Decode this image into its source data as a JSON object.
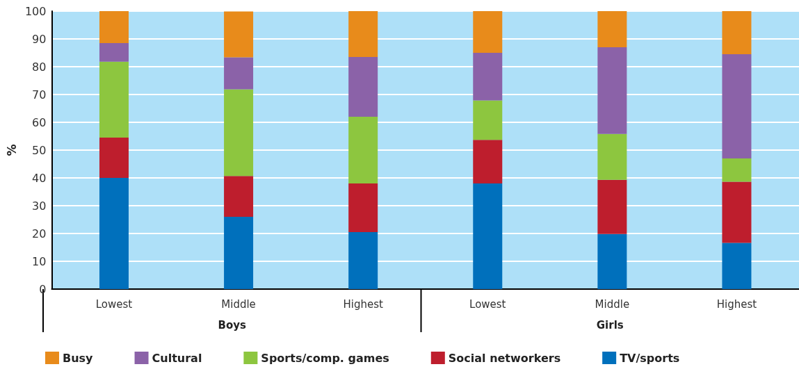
{
  "chart_data": {
    "type": "bar",
    "stacked": true,
    "ylabel": "%",
    "categories": [
      "Lowest",
      "Middle",
      "Highest",
      "Lowest",
      "Middle",
      "Highest"
    ],
    "annotations": [
      "Boys",
      "Girls"
    ],
    "series": [
      {
        "name": "TV/sports",
        "color": "#0070bc",
        "values": [
          40,
          26,
          20.5,
          38,
          19.8,
          16.6
        ]
      },
      {
        "name": "Social networkers",
        "color": "#be1e2d",
        "values": [
          14.5,
          14.7,
          17.5,
          15.7,
          19.5,
          22
        ]
      },
      {
        "name": "Sports/comp. games",
        "color": "#8dc63f",
        "values": [
          27.3,
          31.2,
          24,
          14.2,
          16.5,
          8.4
        ]
      },
      {
        "name": "Cultural",
        "color": "#8b62a8",
        "values": [
          6.7,
          11.5,
          21.5,
          17.1,
          31.2,
          37.5
        ]
      },
      {
        "name": "Busy",
        "color": "#e88b1b",
        "values": [
          11.5,
          16.5,
          16.5,
          15,
          13,
          15.5
        ]
      }
    ],
    "ylim": [
      0,
      100
    ],
    "yticks": [
      0,
      10,
      20,
      30,
      40,
      50,
      60,
      70,
      80,
      90,
      100
    ],
    "grid": "y",
    "legend": "bottom"
  }
}
